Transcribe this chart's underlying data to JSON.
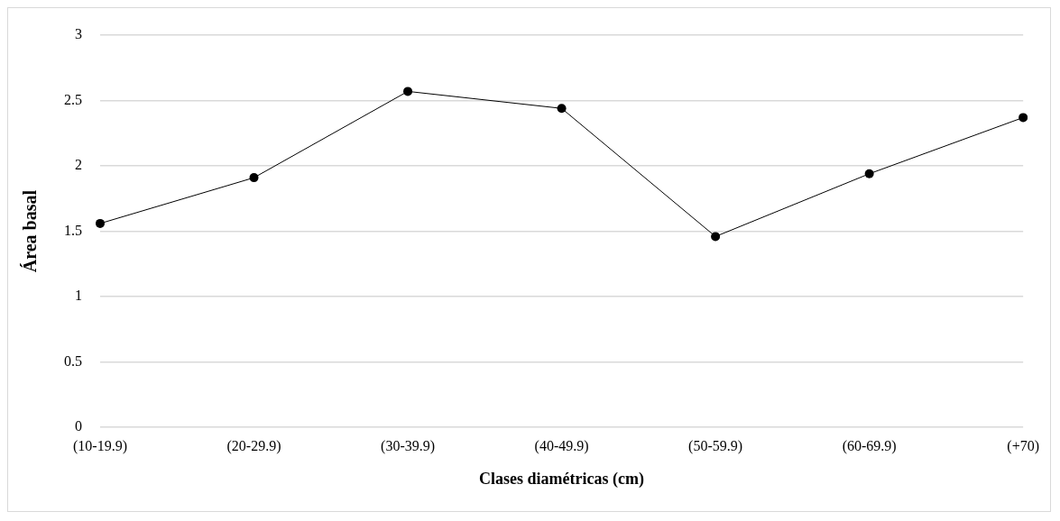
{
  "chart_data": {
    "type": "line",
    "xlabel": "Clases diamétricas (cm)",
    "ylabel": "Área basal",
    "categories": [
      "(10-19.9)",
      "(20-29.9)",
      "(30-39.9)",
      "(40-49.9)",
      "(50-59.9)",
      "(60-69.9)",
      "(+70)"
    ],
    "series": [
      {
        "color": "#000000",
        "values": [
          1.56,
          1.91,
          2.57,
          2.44,
          1.46,
          1.94,
          2.37
        ]
      }
    ],
    "ylim": [
      0,
      3
    ],
    "yticks": [
      0,
      0.5,
      1,
      1.5,
      2,
      2.5,
      3
    ],
    "grid": "y",
    "legend": false,
    "marker": "circle",
    "line_style": "solid"
  }
}
